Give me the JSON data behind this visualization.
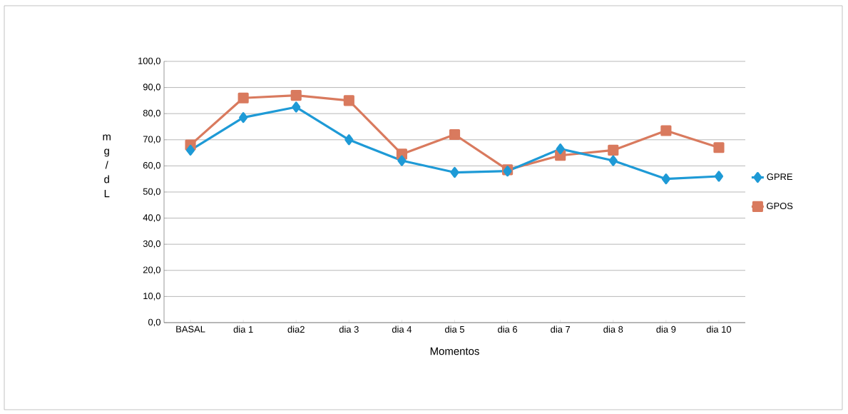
{
  "chart_data": {
    "type": "line",
    "xlabel": "Momentos",
    "ylabel": "m g / d L",
    "categories": [
      "BASAL",
      "dia 1",
      "dia2",
      "dia 3",
      "dia 4",
      "dia 5",
      "dia 6",
      "dia 7",
      "dia 8",
      "dia 9",
      "dia 10"
    ],
    "series": [
      {
        "name": "GPRE",
        "color": "#1e9ad6",
        "marker": "diamond",
        "values": [
          66,
          78.5,
          82.5,
          70,
          62,
          57.5,
          58,
          66.5,
          62,
          55,
          56
        ]
      },
      {
        "name": "GPOS",
        "color": "#d97a5e",
        "marker": "square",
        "values": [
          68,
          86,
          87,
          85,
          64.5,
          72,
          58.5,
          64,
          66,
          73.5,
          67
        ]
      }
    ],
    "ylim": [
      0,
      100
    ],
    "yticks": [
      {
        "value": 0,
        "label": "0,0"
      },
      {
        "value": 10,
        "label": "10,0"
      },
      {
        "value": 20,
        "label": "20,0"
      },
      {
        "value": 30,
        "label": "30,0"
      },
      {
        "value": 40,
        "label": "40,0"
      },
      {
        "value": 50,
        "label": "50,0"
      },
      {
        "value": 60,
        "label": "60,0"
      },
      {
        "value": 70,
        "label": "70,0"
      },
      {
        "value": 80,
        "label": "80,0"
      },
      {
        "value": 90,
        "label": "90,0"
      },
      {
        "value": 100,
        "label": "100,0"
      }
    ],
    "grid": "y",
    "legend": "right",
    "line_style": "solid"
  }
}
